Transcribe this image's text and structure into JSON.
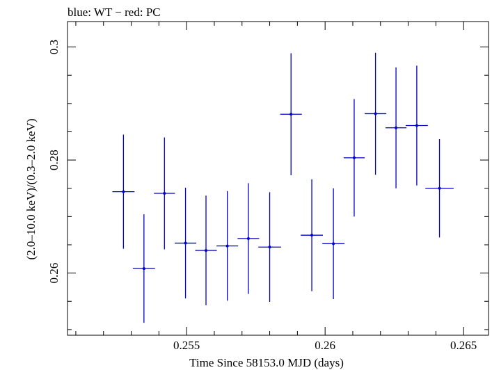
{
  "chart_data": {
    "type": "scatter",
    "title": "blue: WT − red: PC",
    "xlabel": "Time Since 58153.0 MJD (days)",
    "ylabel": "(2.0–10.0 keV)/(0.3–2.0 keV)",
    "xlim": [
      0.2507,
      0.2659
    ],
    "ylim": [
      0.249,
      0.3045
    ],
    "x_ticks": [
      0.255,
      0.26,
      0.265
    ],
    "x_tick_labels": [
      "0.255",
      "0.26",
      "0.265"
    ],
    "y_ticks": [
      0.26,
      0.28,
      0.3
    ],
    "y_tick_labels": [
      "0.26",
      "0.28",
      "0.3"
    ],
    "grid": false,
    "series_color": "#0000cc",
    "series": [
      {
        "name": "WT",
        "points": [
          {
            "x": 0.25272,
            "y": 0.2744,
            "xerr": 0.0004,
            "yerr": 0.0101
          },
          {
            "x": 0.25346,
            "y": 0.2608,
            "xerr": 0.0004,
            "yerr": 0.0096
          },
          {
            "x": 0.2542,
            "y": 0.2741,
            "xerr": 0.00038,
            "yerr": 0.0099
          },
          {
            "x": 0.25496,
            "y": 0.2653,
            "xerr": 0.00039,
            "yerr": 0.0098
          },
          {
            "x": 0.2557,
            "y": 0.264,
            "xerr": 0.00039,
            "yerr": 0.0097
          },
          {
            "x": 0.25647,
            "y": 0.2648,
            "xerr": 0.00039,
            "yerr": 0.0097
          },
          {
            "x": 0.25723,
            "y": 0.2661,
            "xerr": 0.00039,
            "yerr": 0.0098
          },
          {
            "x": 0.258,
            "y": 0.2646,
            "xerr": 0.00041,
            "yerr": 0.0097
          },
          {
            "x": 0.25877,
            "y": 0.2881,
            "xerr": 0.00039,
            "yerr": 0.0108
          },
          {
            "x": 0.25952,
            "y": 0.2667,
            "xerr": 0.0004,
            "yerr": 0.0099
          },
          {
            "x": 0.2603,
            "y": 0.2652,
            "xerr": 0.0004,
            "yerr": 0.0098
          },
          {
            "x": 0.26105,
            "y": 0.2804,
            "xerr": 0.00038,
            "yerr": 0.0104
          },
          {
            "x": 0.26182,
            "y": 0.2882,
            "xerr": 0.00039,
            "yerr": 0.0108
          },
          {
            "x": 0.26256,
            "y": 0.2857,
            "xerr": 0.00038,
            "yerr": 0.0107
          },
          {
            "x": 0.26331,
            "y": 0.2861,
            "xerr": 0.0004,
            "yerr": 0.0106
          },
          {
            "x": 0.26413,
            "y": 0.275,
            "xerr": 0.00051,
            "yerr": 0.0087
          }
        ]
      }
    ]
  }
}
